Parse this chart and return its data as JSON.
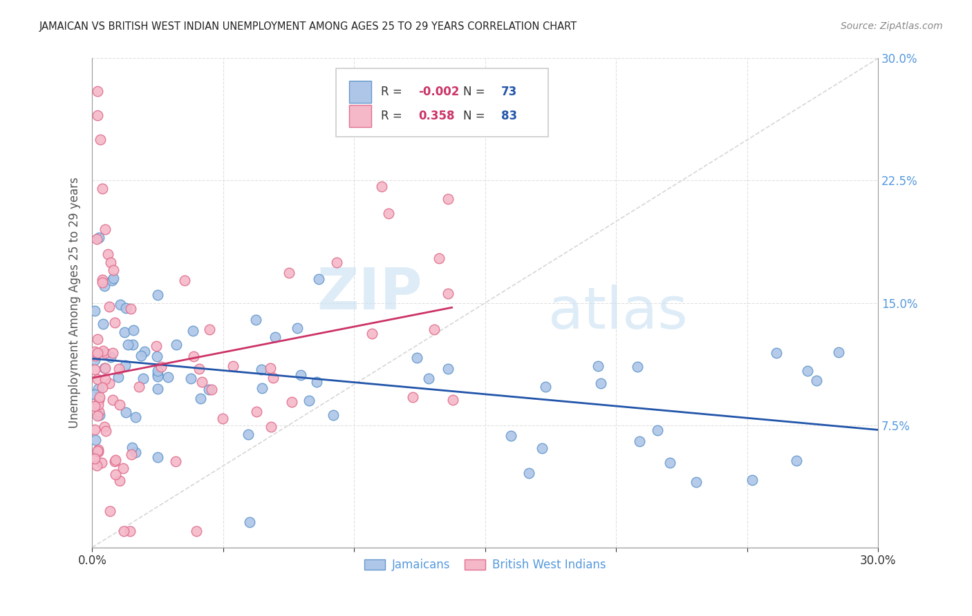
{
  "title": "JAMAICAN VS BRITISH WEST INDIAN UNEMPLOYMENT AMONG AGES 25 TO 29 YEARS CORRELATION CHART",
  "source": "Source: ZipAtlas.com",
  "ylabel": "Unemployment Among Ages 25 to 29 years",
  "xlim": [
    0.0,
    0.3
  ],
  "ylim": [
    0.0,
    0.3
  ],
  "xticks": [
    0.0,
    0.05,
    0.1,
    0.15,
    0.2,
    0.25,
    0.3
  ],
  "yticks": [
    0.0,
    0.075,
    0.15,
    0.225,
    0.3
  ],
  "R_jamaican": -0.002,
  "N_jamaican": 73,
  "R_bwi": 0.358,
  "N_bwi": 83,
  "jamaican_color": "#aec6e8",
  "jamaican_edge_color": "#6699cc",
  "bwi_color": "#f4b8c8",
  "bwi_edge_color": "#e07090",
  "trend_jamaican_color": "#2255aa",
  "trend_bwi_color": "#cc3366",
  "diagonal_color": "#cccccc",
  "background_color": "#ffffff",
  "watermark_zip": "ZIP",
  "watermark_atlas": "atlas",
  "right_tick_color": "#5599dd",
  "bottom_tick_color": "#333333"
}
